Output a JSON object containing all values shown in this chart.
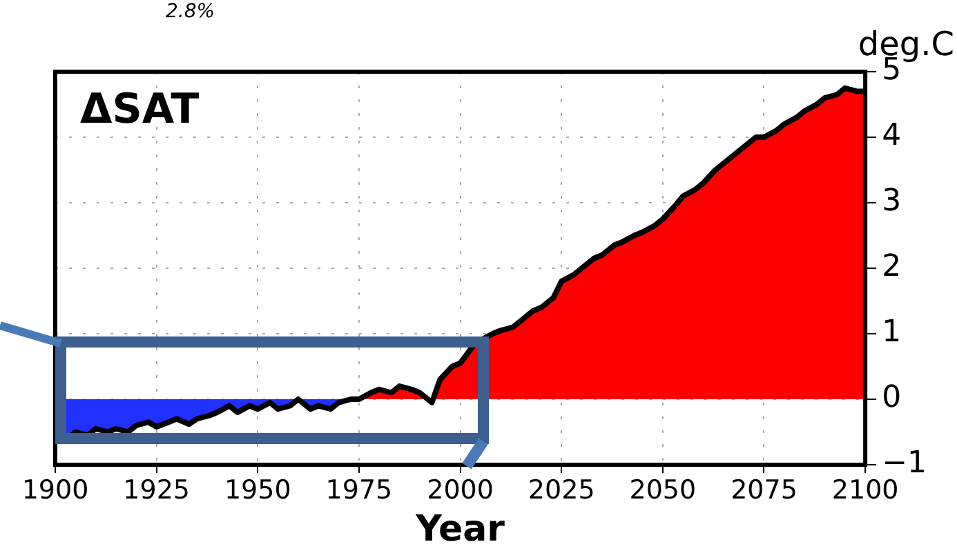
{
  "chart_data": {
    "type": "area",
    "title": "ΔSAT",
    "xlabel": "Year",
    "ylabel": "deg.C",
    "annotations": [
      "2.8%"
    ],
    "x": [
      1900,
      1903,
      1905,
      1908,
      1910,
      1913,
      1915,
      1918,
      1920,
      1923,
      1925,
      1928,
      1930,
      1933,
      1935,
      1938,
      1940,
      1943,
      1945,
      1948,
      1950,
      1953,
      1955,
      1958,
      1960,
      1963,
      1965,
      1968,
      1970,
      1973,
      1975,
      1978,
      1980,
      1983,
      1985,
      1988,
      1990,
      1993,
      1995,
      1998,
      2000,
      2003,
      2005,
      2008,
      2010,
      2013,
      2015,
      2018,
      2020,
      2023,
      2025,
      2028,
      2030,
      2033,
      2035,
      2038,
      2040,
      2043,
      2045,
      2048,
      2050,
      2053,
      2055,
      2058,
      2060,
      2063,
      2065,
      2068,
      2070,
      2073,
      2075,
      2078,
      2080,
      2083,
      2085,
      2088,
      2090,
      2093,
      2095,
      2098,
      2100
    ],
    "series": [
      {
        "color": "#000000",
        "values": [
          -0.5,
          -0.6,
          -0.5,
          -0.55,
          -0.45,
          -0.5,
          -0.45,
          -0.5,
          -0.4,
          -0.35,
          -0.42,
          -0.35,
          -0.3,
          -0.38,
          -0.3,
          -0.25,
          -0.2,
          -0.1,
          -0.2,
          -0.1,
          -0.15,
          -0.05,
          -0.15,
          -0.1,
          0.0,
          -0.15,
          -0.1,
          -0.15,
          -0.05,
          0.0,
          0.0,
          0.1,
          0.15,
          0.1,
          0.2,
          0.15,
          0.1,
          -0.05,
          0.3,
          0.5,
          0.55,
          0.8,
          0.9,
          1.0,
          1.05,
          1.1,
          1.2,
          1.35,
          1.4,
          1.55,
          1.8,
          1.9,
          2.0,
          2.15,
          2.2,
          2.35,
          2.4,
          2.5,
          2.55,
          2.65,
          2.75,
          2.95,
          3.1,
          3.2,
          3.3,
          3.5,
          3.6,
          3.75,
          3.85,
          4.0,
          4.0,
          4.1,
          4.2,
          4.3,
          4.4,
          4.5,
          4.6,
          4.65,
          4.75,
          4.7,
          4.7
        ]
      }
    ],
    "colors": [
      "#ff0000",
      "#2030ff"
    ],
    "xlim": [
      1900,
      2100
    ],
    "xticks": [
      1900,
      1925,
      1950,
      1975,
      2000,
      2025,
      2050,
      2075,
      2100
    ],
    "ylim": [
      -1,
      5
    ],
    "yticks": [
      -1,
      0,
      1,
      2,
      3,
      4,
      5
    ],
    "grid": true,
    "legend": false
  }
}
